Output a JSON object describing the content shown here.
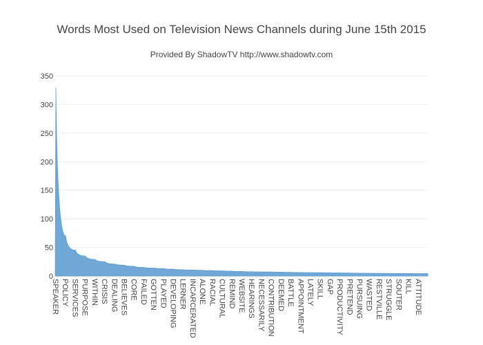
{
  "chart_data": {
    "type": "area",
    "title": "Words Most Used on Television News Channels during June 15th 2015",
    "subtitle": "Provided By ShadowTV  http://www.shadowtv.com",
    "xlabel": "",
    "ylabel": "",
    "ylim": [
      0,
      350
    ],
    "yticks": [
      0,
      50,
      100,
      150,
      200,
      250,
      300,
      350
    ],
    "grid": true,
    "color": "#6fa8d6",
    "x_tick_labels": [
      "SPEAKER",
      "POLICY",
      "SERVICES",
      "PURPOSE",
      "WITHIN",
      "CRISIS",
      "DEALING",
      "BELIEVES",
      "CORE",
      "FAILED",
      "GOTTEN",
      "PLAYED",
      "DEVELOPING",
      "LERNER",
      "INCARCERATED",
      "ALONE",
      "RACIAL",
      "CULTURAL",
      "REMIND",
      "WEBSITE",
      "HEARINGS",
      "NECESSARILY",
      "CONTRIBUTION",
      "DEEMED",
      "BATTLE",
      "APPOINTMENT",
      "LATELY",
      "SKILL",
      "GAP",
      "PRODUCTIVITY",
      "PRETEND",
      "PURSUING",
      "WASTED",
      "RESTVILLE",
      "STRUGGLE",
      "SOUTER",
      "KILL",
      "ATTITUDE"
    ],
    "series": [
      {
        "x_index": [
          0,
          1,
          2,
          3,
          4,
          5,
          6,
          7,
          8,
          9,
          10,
          11,
          12,
          13,
          14,
          15,
          16,
          17,
          18,
          19,
          20,
          21,
          22,
          23,
          24,
          25,
          26,
          27,
          28,
          29,
          30,
          31,
          32,
          33,
          34,
          35,
          36,
          37
        ],
        "values": [
          330,
          70,
          45,
          35,
          29,
          25,
          21,
          19,
          17,
          15,
          14,
          13,
          12,
          11,
          10.5,
          10,
          9.5,
          9,
          8.5,
          8,
          7.5,
          7.2,
          7,
          6.8,
          6.5,
          6.2,
          6,
          5.8,
          5.6,
          5.4,
          5.2,
          5,
          4.8,
          4.6,
          4.5,
          4.4,
          4.3,
          4.2
        ]
      }
    ]
  }
}
